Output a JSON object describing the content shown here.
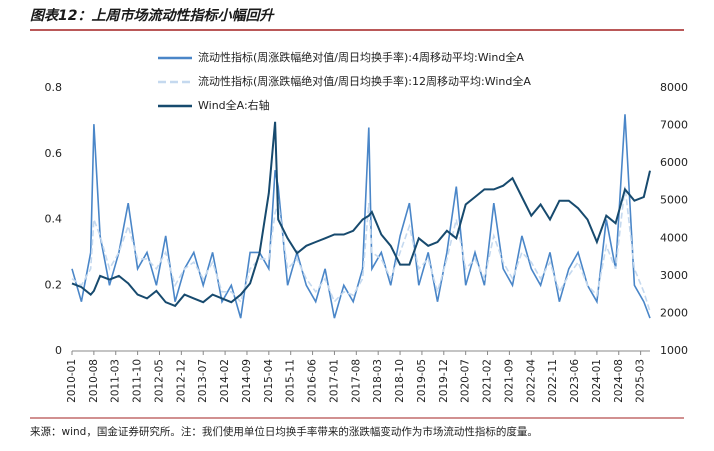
{
  "chart_data": {
    "type": "line",
    "title": "图表12：上周市场流动性指标小幅回升",
    "source": "来源：wind，国金证券研究所。注：我们使用单位日均换手率带来的涨跌幅变动作为市场流动性指标的度量。",
    "x": [
      "2010-01",
      "2010-04",
      "2010-07",
      "2010-08",
      "2010-10",
      "2011-01",
      "2011-04",
      "2011-07",
      "2011-10",
      "2012-01",
      "2012-04",
      "2012-07",
      "2012-10",
      "2013-01",
      "2013-04",
      "2013-07",
      "2013-10",
      "2014-01",
      "2014-04",
      "2014-07",
      "2014-10",
      "2015-01",
      "2015-04",
      "2015-06",
      "2015-07",
      "2015-10",
      "2016-01",
      "2016-04",
      "2016-07",
      "2016-10",
      "2017-01",
      "2017-04",
      "2017-07",
      "2017-10",
      "2017-12",
      "2018-01",
      "2018-04",
      "2018-07",
      "2018-10",
      "2019-01",
      "2019-04",
      "2019-07",
      "2019-10",
      "2020-01",
      "2020-04",
      "2020-07",
      "2020-10",
      "2021-01",
      "2021-04",
      "2021-07",
      "2021-10",
      "2022-01",
      "2022-04",
      "2022-07",
      "2022-10",
      "2023-01",
      "2023-04",
      "2023-07",
      "2023-10",
      "2024-01",
      "2024-04",
      "2024-07",
      "2024-10",
      "2025-01",
      "2025-04",
      "2025-06"
    ],
    "xlim": [
      "2010-01",
      "2025-06"
    ],
    "xticks": [
      "2010-01",
      "2010-08",
      "2011-03",
      "2011-10",
      "2012-05",
      "2012-12",
      "2013-07",
      "2014-02",
      "2014-09",
      "2015-04",
      "2015-11",
      "2016-06",
      "2017-01",
      "2017-08",
      "2018-03",
      "2018-10",
      "2019-05",
      "2019-12",
      "2020-07",
      "2021-02",
      "2021-09",
      "2022-04",
      "2022-11",
      "2023-06",
      "2024-01",
      "2024-08",
      "2025-03"
    ],
    "ylim": [
      0,
      0.8
    ],
    "yticks": [
      0,
      0.2,
      0.4,
      0.6,
      0.8
    ],
    "y2lim": [
      1000,
      8000
    ],
    "y2ticks": [
      1000,
      2000,
      3000,
      4000,
      5000,
      6000,
      7000,
      8000
    ],
    "series": [
      {
        "name": "流动性指标(周涨跌幅绝对值/周日均换手率):4周移动平均:Wind全A",
        "color": "#4a86c8",
        "values": [
          0.25,
          0.15,
          0.3,
          0.69,
          0.35,
          0.2,
          0.3,
          0.45,
          0.25,
          0.3,
          0.2,
          0.35,
          0.15,
          0.25,
          0.3,
          0.2,
          0.3,
          0.15,
          0.2,
          0.1,
          0.3,
          0.3,
          0.25,
          0.55,
          0.5,
          0.2,
          0.3,
          0.2,
          0.15,
          0.25,
          0.1,
          0.2,
          0.15,
          0.25,
          0.68,
          0.25,
          0.3,
          0.2,
          0.35,
          0.45,
          0.2,
          0.3,
          0.15,
          0.3,
          0.5,
          0.2,
          0.3,
          0.2,
          0.45,
          0.25,
          0.2,
          0.35,
          0.25,
          0.2,
          0.3,
          0.15,
          0.25,
          0.3,
          0.2,
          0.15,
          0.4,
          0.25,
          0.72,
          0.2,
          0.15,
          0.1
        ]
      },
      {
        "name": "流动性指标(周涨跌幅绝对值/周日均换手率):12周移动平均:Wind全A",
        "color": "#c5d9ef",
        "dashed": true,
        "values": [
          0.22,
          0.2,
          0.25,
          0.4,
          0.35,
          0.25,
          0.3,
          0.38,
          0.28,
          0.28,
          0.25,
          0.3,
          0.2,
          0.25,
          0.27,
          0.22,
          0.27,
          0.18,
          0.18,
          0.15,
          0.25,
          0.28,
          0.28,
          0.42,
          0.45,
          0.25,
          0.28,
          0.22,
          0.18,
          0.22,
          0.15,
          0.18,
          0.17,
          0.22,
          0.45,
          0.3,
          0.28,
          0.22,
          0.3,
          0.38,
          0.25,
          0.28,
          0.18,
          0.28,
          0.4,
          0.25,
          0.28,
          0.22,
          0.35,
          0.27,
          0.22,
          0.3,
          0.27,
          0.22,
          0.27,
          0.18,
          0.23,
          0.27,
          0.2,
          0.17,
          0.32,
          0.25,
          0.5,
          0.25,
          0.18,
          0.12
        ]
      },
      {
        "name": "Wind全A:右轴",
        "color": "#174a6e",
        "axis": "y2",
        "values": [
          2800,
          2700,
          2500,
          2600,
          3000,
          2900,
          3000,
          2800,
          2500,
          2400,
          2600,
          2300,
          2200,
          2500,
          2400,
          2300,
          2500,
          2400,
          2300,
          2500,
          2800,
          3600,
          5200,
          7100,
          4500,
          4000,
          3600,
          3800,
          3900,
          4000,
          4100,
          4100,
          4200,
          4500,
          4600,
          4700,
          4100,
          3800,
          3300,
          3300,
          4000,
          3800,
          3900,
          4200,
          4000,
          4900,
          5100,
          5300,
          5300,
          5400,
          5600,
          5100,
          4600,
          4900,
          4500,
          5000,
          5000,
          4800,
          4500,
          3900,
          4600,
          4400,
          5300,
          5000,
          5100,
          5800
        ]
      }
    ]
  }
}
